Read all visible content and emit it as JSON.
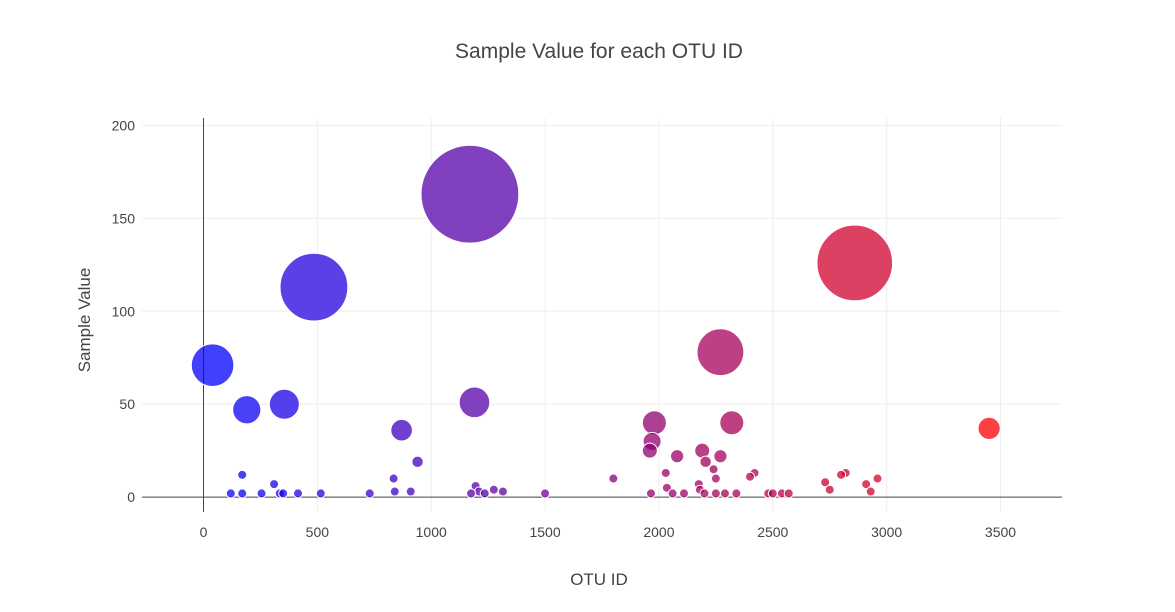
{
  "chart_data": {
    "type": "scatter",
    "title": "Sample Value for each OTU ID",
    "xlabel": "OTU ID",
    "ylabel": "Sample Value",
    "xlim": [
      -270,
      3770
    ],
    "ylim": [
      -8,
      204
    ],
    "x_ticks": [
      0,
      500,
      1000,
      1500,
      2000,
      2500,
      3000,
      3500
    ],
    "y_ticks": [
      0,
      50,
      100,
      150,
      200
    ],
    "grid": true,
    "legend": "none",
    "color_scale": {
      "from": "#0000ff",
      "to": "#ff0000",
      "domain": [
        0,
        3500
      ]
    },
    "points": [
      {
        "x": 40,
        "y": 71
      },
      {
        "x": 190,
        "y": 47
      },
      {
        "x": 355,
        "y": 50
      },
      {
        "x": 485,
        "y": 113
      },
      {
        "x": 170,
        "y": 12
      },
      {
        "x": 310,
        "y": 7
      },
      {
        "x": 120,
        "y": 2
      },
      {
        "x": 170,
        "y": 2
      },
      {
        "x": 255,
        "y": 2
      },
      {
        "x": 335,
        "y": 2
      },
      {
        "x": 350,
        "y": 2
      },
      {
        "x": 415,
        "y": 2
      },
      {
        "x": 515,
        "y": 2
      },
      {
        "x": 730,
        "y": 2
      },
      {
        "x": 835,
        "y": 10
      },
      {
        "x": 870,
        "y": 36
      },
      {
        "x": 940,
        "y": 19
      },
      {
        "x": 840,
        "y": 3
      },
      {
        "x": 910,
        "y": 3
      },
      {
        "x": 1170,
        "y": 163
      },
      {
        "x": 1190,
        "y": 51
      },
      {
        "x": 1195,
        "y": 6
      },
      {
        "x": 1210,
        "y": 3
      },
      {
        "x": 1235,
        "y": 2
      },
      {
        "x": 1275,
        "y": 4
      },
      {
        "x": 1315,
        "y": 3
      },
      {
        "x": 1175,
        "y": 2
      },
      {
        "x": 1500,
        "y": 2
      },
      {
        "x": 1800,
        "y": 10
      },
      {
        "x": 1980,
        "y": 40
      },
      {
        "x": 1970,
        "y": 30
      },
      {
        "x": 1960,
        "y": 25
      },
      {
        "x": 2030,
        "y": 13
      },
      {
        "x": 2080,
        "y": 22
      },
      {
        "x": 2035,
        "y": 5
      },
      {
        "x": 1965,
        "y": 2
      },
      {
        "x": 2060,
        "y": 2
      },
      {
        "x": 2110,
        "y": 2
      },
      {
        "x": 2190,
        "y": 25
      },
      {
        "x": 2205,
        "y": 19
      },
      {
        "x": 2240,
        "y": 15
      },
      {
        "x": 2270,
        "y": 22
      },
      {
        "x": 2250,
        "y": 10
      },
      {
        "x": 2175,
        "y": 7
      },
      {
        "x": 2180,
        "y": 4
      },
      {
        "x": 2200,
        "y": 2
      },
      {
        "x": 2250,
        "y": 2
      },
      {
        "x": 2270,
        "y": 78
      },
      {
        "x": 2320,
        "y": 40
      },
      {
        "x": 2290,
        "y": 2
      },
      {
        "x": 2340,
        "y": 2
      },
      {
        "x": 2420,
        "y": 13
      },
      {
        "x": 2400,
        "y": 11
      },
      {
        "x": 2480,
        "y": 2
      },
      {
        "x": 2500,
        "y": 2
      },
      {
        "x": 2540,
        "y": 2
      },
      {
        "x": 2570,
        "y": 2
      },
      {
        "x": 2730,
        "y": 8
      },
      {
        "x": 2750,
        "y": 4
      },
      {
        "x": 2800,
        "y": 12
      },
      {
        "x": 2820,
        "y": 13
      },
      {
        "x": 2860,
        "y": 126
      },
      {
        "x": 2910,
        "y": 7
      },
      {
        "x": 2960,
        "y": 10
      },
      {
        "x": 2930,
        "y": 3
      },
      {
        "x": 3450,
        "y": 37
      }
    ]
  }
}
